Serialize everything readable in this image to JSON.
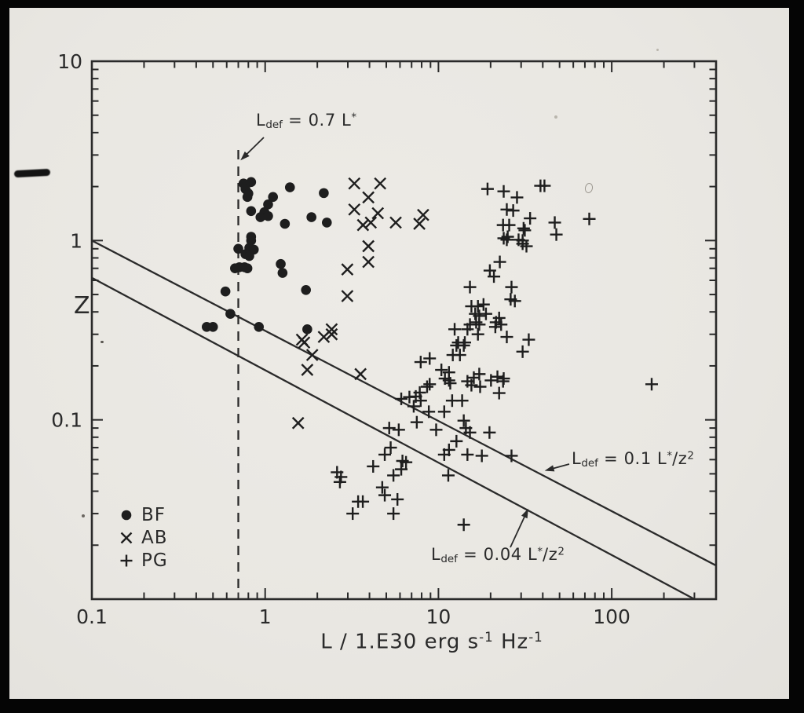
{
  "figure": {
    "ink_color": "#2a2a2a",
    "marker_color": "#1e1e1e",
    "paper_color": "#e9e7e2",
    "background_color": "#050505"
  },
  "chart_data": {
    "type": "scatter",
    "title": "",
    "xlabel": "L / 1.E30 erg s^{-1} Hz^{-1}",
    "ylabel": "Z",
    "xscale": "log",
    "yscale": "log",
    "xlim": [
      0.1,
      400
    ],
    "ylim": [
      0.01,
      10
    ],
    "grid": false,
    "legend_position": "lower-left",
    "x_ticks": [
      {
        "v": 0.1,
        "label": "0.1"
      },
      {
        "v": 1,
        "label": "1"
      },
      {
        "v": 10,
        "label": "10"
      },
      {
        "v": 100,
        "label": "100"
      }
    ],
    "y_ticks": [
      {
        "v": 10,
        "label": "10"
      },
      {
        "v": 1,
        "label": "1"
      },
      {
        "v": 0.1,
        "label": "0.1"
      }
    ],
    "series": [
      {
        "name": "BF",
        "marker": "circle",
        "points": [
          [
            0.75,
            2.08
          ],
          [
            0.83,
            2.12
          ],
          [
            0.77,
            1.94
          ],
          [
            0.8,
            1.83
          ],
          [
            0.79,
            1.75
          ],
          [
            1.11,
            1.75
          ],
          [
            1.39,
            1.98
          ],
          [
            2.18,
            1.84
          ],
          [
            1.04,
            1.59
          ],
          [
            0.83,
            1.46
          ],
          [
            0.99,
            1.44
          ],
          [
            0.94,
            1.35
          ],
          [
            1.04,
            1.37
          ],
          [
            1.3,
            1.24
          ],
          [
            1.85,
            1.35
          ],
          [
            2.27,
            1.26
          ],
          [
            0.83,
            1.05
          ],
          [
            0.83,
            1.0
          ],
          [
            0.7,
            0.9
          ],
          [
            0.81,
            0.91
          ],
          [
            0.86,
            0.89
          ],
          [
            0.77,
            0.84
          ],
          [
            0.81,
            0.82
          ],
          [
            0.67,
            0.7
          ],
          [
            0.71,
            0.71
          ],
          [
            0.76,
            0.71
          ],
          [
            0.79,
            0.7
          ],
          [
            1.23,
            0.74
          ],
          [
            1.26,
            0.66
          ],
          [
            0.59,
            0.52
          ],
          [
            1.72,
            0.53
          ],
          [
            0.63,
            0.39
          ],
          [
            0.46,
            0.33
          ],
          [
            0.5,
            0.33
          ],
          [
            0.92,
            0.33
          ],
          [
            1.75,
            0.32
          ]
        ]
      },
      {
        "name": "AB",
        "marker": "x",
        "points": [
          [
            3.27,
            2.08
          ],
          [
            4.61,
            2.08
          ],
          [
            3.94,
            1.74
          ],
          [
            3.27,
            1.49
          ],
          [
            4.47,
            1.42
          ],
          [
            3.67,
            1.22
          ],
          [
            4.07,
            1.26
          ],
          [
            5.67,
            1.26
          ],
          [
            7.76,
            1.24
          ],
          [
            8.16,
            1.39
          ],
          [
            3.94,
            0.93
          ],
          [
            3.94,
            0.76
          ],
          [
            2.98,
            0.69
          ],
          [
            2.98,
            0.49
          ],
          [
            2.42,
            0.32
          ],
          [
            1.63,
            0.28
          ],
          [
            1.68,
            0.27
          ],
          [
            2.18,
            0.29
          ],
          [
            2.42,
            0.3
          ],
          [
            1.87,
            0.23
          ],
          [
            1.75,
            0.19
          ],
          [
            3.55,
            0.18
          ],
          [
            1.55,
            0.096
          ]
        ]
      },
      {
        "name": "PG",
        "marker": "plus",
        "points": [
          [
            19.2,
            1.94
          ],
          [
            23.8,
            1.88
          ],
          [
            28.4,
            1.74
          ],
          [
            38.8,
            2.02
          ],
          [
            40.9,
            2.02
          ],
          [
            24.8,
            1.49
          ],
          [
            27.0,
            1.47
          ],
          [
            33.8,
            1.33
          ],
          [
            31.5,
            1.14
          ],
          [
            46.9,
            1.26
          ],
          [
            47.9,
            1.08
          ],
          [
            74.2,
            1.32
          ],
          [
            24.8,
            1.01
          ],
          [
            30.6,
            1.0
          ],
          [
            32.2,
            0.93
          ],
          [
            23.6,
            1.22
          ],
          [
            25.6,
            1.22
          ],
          [
            31.0,
            1.17
          ],
          [
            23.8,
            1.03
          ],
          [
            25.1,
            1.05
          ],
          [
            29.0,
            1.01
          ],
          [
            30.6,
            0.96
          ],
          [
            22.6,
            0.76
          ],
          [
            19.8,
            0.68
          ],
          [
            20.9,
            0.63
          ],
          [
            15.2,
            0.55
          ],
          [
            26.4,
            0.55
          ],
          [
            26.1,
            0.47
          ],
          [
            27.6,
            0.46
          ],
          [
            24.8,
            0.29
          ],
          [
            33.2,
            0.28
          ],
          [
            30.6,
            0.24
          ],
          [
            23.8,
            0.17
          ],
          [
            170,
            0.158
          ],
          [
            15.5,
            0.43
          ],
          [
            16.9,
            0.43
          ],
          [
            18.2,
            0.44
          ],
          [
            16.3,
            0.39
          ],
          [
            17.2,
            0.38
          ],
          [
            18.8,
            0.39
          ],
          [
            15.2,
            0.34
          ],
          [
            16.5,
            0.35
          ],
          [
            17.2,
            0.34
          ],
          [
            21.5,
            0.35
          ],
          [
            23.0,
            0.34
          ],
          [
            12.4,
            0.32
          ],
          [
            14.7,
            0.32
          ],
          [
            16.9,
            0.3
          ],
          [
            13.0,
            0.27
          ],
          [
            14.2,
            0.27
          ],
          [
            22.4,
            0.37
          ],
          [
            21.3,
            0.33
          ],
          [
            12.7,
            0.26
          ],
          [
            14.0,
            0.26
          ],
          [
            12.1,
            0.23
          ],
          [
            13.3,
            0.23
          ],
          [
            8.9,
            0.22
          ],
          [
            7.9,
            0.21
          ],
          [
            10.4,
            0.19
          ],
          [
            11.5,
            0.184
          ],
          [
            10.9,
            0.17
          ],
          [
            11.5,
            0.166
          ],
          [
            11.7,
            0.16
          ],
          [
            14.7,
            0.164
          ],
          [
            16.0,
            0.172
          ],
          [
            17.2,
            0.18
          ],
          [
            15.5,
            0.156
          ],
          [
            17.4,
            0.153
          ],
          [
            20.1,
            0.166
          ],
          [
            21.9,
            0.174
          ],
          [
            23.6,
            0.164
          ],
          [
            22.4,
            0.141
          ],
          [
            6.1,
            0.131
          ],
          [
            6.8,
            0.134
          ],
          [
            7.4,
            0.135
          ],
          [
            7.9,
            0.128
          ],
          [
            7.8,
            0.142
          ],
          [
            8.6,
            0.153
          ],
          [
            8.9,
            0.158
          ],
          [
            7.2,
            0.119
          ],
          [
            8.8,
            0.111
          ],
          [
            10.8,
            0.111
          ],
          [
            12.0,
            0.128
          ],
          [
            13.7,
            0.128
          ],
          [
            7.5,
            0.097
          ],
          [
            9.7,
            0.088
          ],
          [
            14.0,
            0.099
          ],
          [
            14.4,
            0.09
          ],
          [
            15.2,
            0.085
          ],
          [
            5.2,
            0.09
          ],
          [
            5.9,
            0.088
          ],
          [
            19.7,
            0.085
          ],
          [
            12.7,
            0.076
          ],
          [
            5.3,
            0.07
          ],
          [
            4.9,
            0.064
          ],
          [
            11.5,
            0.068
          ],
          [
            10.8,
            0.064
          ],
          [
            14.7,
            0.064
          ],
          [
            17.8,
            0.063
          ],
          [
            26.4,
            0.063
          ],
          [
            4.2,
            0.055
          ],
          [
            6.2,
            0.059
          ],
          [
            6.5,
            0.058
          ],
          [
            6.1,
            0.053
          ],
          [
            2.6,
            0.051
          ],
          [
            2.74,
            0.048
          ],
          [
            2.7,
            0.045
          ],
          [
            5.5,
            0.049
          ],
          [
            11.4,
            0.049
          ],
          [
            4.74,
            0.042
          ],
          [
            4.9,
            0.038
          ],
          [
            3.44,
            0.035
          ],
          [
            3.66,
            0.035
          ],
          [
            5.8,
            0.036
          ],
          [
            3.2,
            0.03
          ],
          [
            5.5,
            0.03
          ],
          [
            14.0,
            0.026
          ]
        ]
      }
    ],
    "lines": [
      {
        "label": "L_{def} = 0.7 L^{*}",
        "style": "dashed",
        "from": [
          0.7,
          3.2
        ],
        "to": [
          0.7,
          0.0106
        ]
      },
      {
        "label": "L_{def} = 0.1 L^{*}/z^{2}",
        "style": "solid",
        "from": [
          0.1,
          1.0
        ],
        "to": [
          400,
          0.0154
        ]
      },
      {
        "label": "L_{def} = 0.04 L^{*}/z^{2}",
        "style": "solid",
        "from": [
          0.1,
          0.62
        ],
        "to": [
          300,
          0.01
        ]
      }
    ],
    "annotations": [
      {
        "label": "L_{def} = 0.7 L^{*}",
        "arrow_tip": [
          0.72,
          2.8
        ]
      },
      {
        "label": "L_{def} = 0.1 L^{*}/z^{2}",
        "arrow_tip": [
          41,
          0.052
        ]
      },
      {
        "label": "L_{def} = 0.04 L^{*}/z^{2}",
        "arrow_tip": [
          33,
          0.032
        ]
      }
    ],
    "legend": [
      {
        "marker": "circle",
        "label": "BF"
      },
      {
        "marker": "x",
        "label": "AB"
      },
      {
        "marker": "plus",
        "label": "PG"
      }
    ]
  }
}
